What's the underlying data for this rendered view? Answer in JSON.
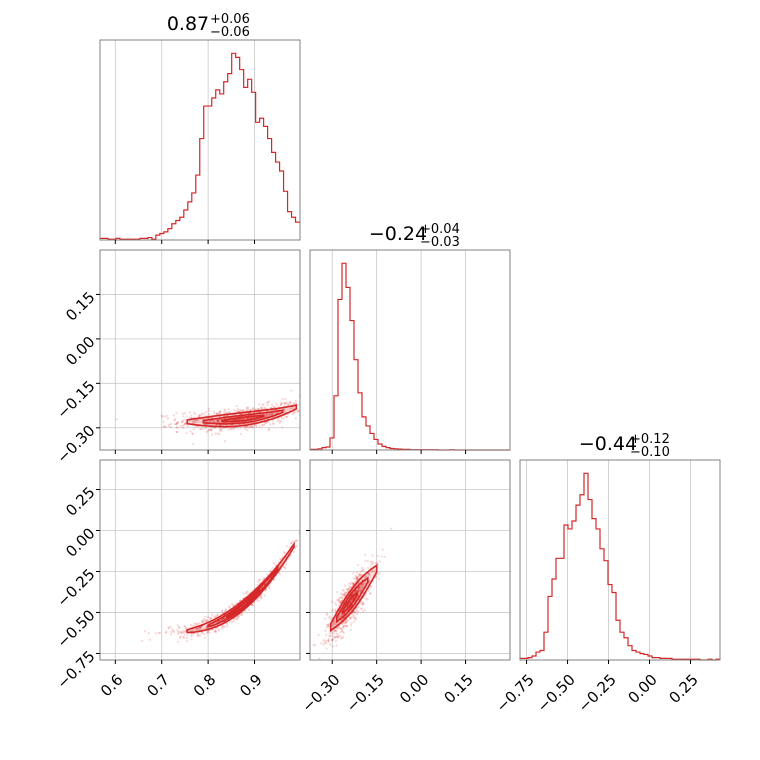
{
  "chart_data": {
    "type": "corner",
    "color": "#d62728",
    "params": [
      {
        "title_value": "0.87",
        "title_plus": "+0.06",
        "title_minus": "−0.06",
        "range": [
          0.567,
          0.998
        ],
        "ticks": [
          0.6,
          0.7,
          0.8,
          0.9
        ],
        "tick_labels": [
          "0.6",
          "0.7",
          "0.8",
          "0.9"
        ]
      },
      {
        "title_value": "−0.24",
        "title_plus": "+0.04",
        "title_minus": "−0.03",
        "range": [
          -0.375,
          0.3
        ],
        "ticks": [
          -0.3,
          -0.15,
          0.0,
          0.15
        ],
        "tick_labels": [
          "−0.30",
          "−0.15",
          "0.00",
          "0.15"
        ]
      },
      {
        "title_value": "−0.44",
        "title_plus": "+0.12",
        "title_minus": "−0.10",
        "range": [
          -0.79,
          0.43
        ],
        "ticks": [
          -0.75,
          -0.5,
          -0.25,
          0.0,
          0.25
        ],
        "tick_labels": [
          "−0.75",
          "−0.50",
          "−0.25",
          "0.00",
          "0.25"
        ]
      }
    ],
    "histograms": [
      {
        "param": 0,
        "bin_start": 0.567,
        "bin_width": 0.0086,
        "counts": [
          2,
          2,
          1,
          1,
          2,
          1,
          1,
          1,
          1,
          1,
          2,
          2,
          3,
          1,
          6,
          8,
          10,
          14,
          20,
          24,
          28,
          37,
          47,
          58,
          80,
          125,
          165,
          165,
          175,
          185,
          180,
          195,
          205,
          230,
          225,
          210,
          188,
          198,
          182,
          145,
          150,
          140,
          125,
          108,
          96,
          85,
          60,
          35,
          28,
          22
        ]
      },
      {
        "param": 1,
        "bin_start": -0.375,
        "bin_width": 0.0135,
        "counts": [
          2,
          2,
          4,
          8,
          10,
          40,
          180,
          500,
          620,
          540,
          430,
          300,
          190,
          110,
          80,
          55,
          35,
          20,
          12,
          8,
          5,
          4,
          3,
          2,
          2,
          1,
          1,
          1,
          1,
          1,
          1,
          1,
          0,
          0,
          0,
          1,
          0,
          0,
          0,
          0,
          0,
          0,
          0,
          0,
          0,
          0,
          0,
          0,
          0,
          0
        ]
      },
      {
        "param": 2,
        "bin_start": -0.79,
        "bin_width": 0.0244,
        "counts": [
          2,
          2,
          3,
          5,
          10,
          12,
          35,
          80,
          102,
          128,
          128,
          170,
          165,
          175,
          195,
          208,
          235,
          202,
          178,
          165,
          140,
          125,
          95,
          85,
          50,
          35,
          28,
          18,
          12,
          10,
          8,
          7,
          5,
          3,
          3,
          2,
          2,
          2,
          1,
          1,
          1,
          1,
          1,
          1,
          1,
          0,
          0,
          1,
          0,
          1
        ]
      }
    ],
    "scatter_pairs": [
      {
        "x_param": 0,
        "y_param": 1,
        "x_center": 0.87,
        "y_center": -0.24
      },
      {
        "x_param": 0,
        "y_param": 2,
        "x_center": 0.87,
        "y_center": -0.44
      },
      {
        "x_param": 1,
        "y_param": 2,
        "x_center": -0.24,
        "y_center": -0.44
      }
    ],
    "grid": true
  }
}
